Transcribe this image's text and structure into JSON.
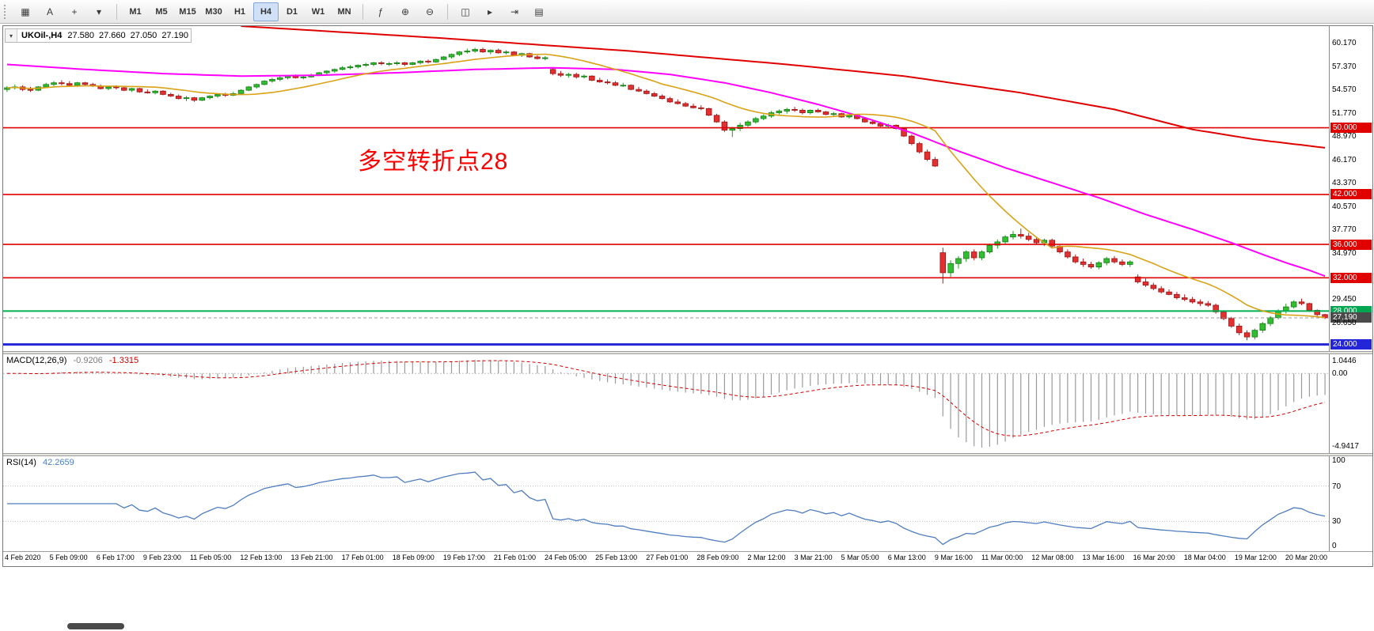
{
  "toolbar": {
    "left_tools": [
      {
        "name": "market-watch",
        "glyph": "▦"
      },
      {
        "name": "text-label",
        "glyph": "A"
      },
      {
        "name": "crosshair",
        "glyph": "+"
      },
      {
        "name": "line-studies",
        "glyph": "▾"
      }
    ],
    "timeframes": [
      "M1",
      "M5",
      "M15",
      "M30",
      "H1",
      "H4",
      "D1",
      "W1",
      "MN"
    ],
    "active_timeframe": "H4",
    "right_tools": [
      {
        "name": "indicators",
        "glyph": "ƒ"
      },
      {
        "name": "zoom-in",
        "glyph": "⊕"
      },
      {
        "name": "zoom-out",
        "glyph": "⊖"
      },
      {
        "name": "tile-windows",
        "glyph": "◫"
      },
      {
        "name": "auto-scroll",
        "glyph": "▸"
      },
      {
        "name": "chart-shift",
        "glyph": "⇥"
      },
      {
        "name": "templates",
        "glyph": "▤"
      }
    ]
  },
  "symbol_info": {
    "symbol": "UKOil-,H4",
    "open": "27.580",
    "high": "27.660",
    "low": "27.050",
    "close": "27.190"
  },
  "annotation": {
    "text": "多空转折点28",
    "color": "#ff0000"
  },
  "price_axis": {
    "ticks": [
      {
        "label": "60.170",
        "value": 60.17
      },
      {
        "label": "57.370",
        "value": 57.37
      },
      {
        "label": "54.570",
        "value": 54.57
      },
      {
        "label": "51.770",
        "value": 51.77
      },
      {
        "label": "48.970",
        "value": 48.97
      },
      {
        "label": "46.170",
        "value": 46.17
      },
      {
        "label": "43.370",
        "value": 43.37
      },
      {
        "label": "40.570",
        "value": 40.57
      },
      {
        "label": "37.770",
        "value": 37.77
      },
      {
        "label": "34.970",
        "value": 34.97
      },
      {
        "label": "29.450",
        "value": 29.45
      },
      {
        "label": "26.650",
        "value": 26.65
      }
    ]
  },
  "indicators": {
    "macd": {
      "label": "MACD(12,26,9)",
      "main_value": "-0.9206",
      "signal_value": "-1.3315",
      "axis_labels": [
        "1.0446",
        "0.00",
        "-4.9417"
      ]
    },
    "rsi": {
      "label": "RSI(14)",
      "value": "42.2659",
      "axis_labels": [
        "100",
        "70",
        "30",
        "0"
      ],
      "levels": [
        30,
        70
      ]
    }
  },
  "time_axis": [
    "4 Feb 2020",
    "5 Feb 09:00",
    "6 Feb 17:00",
    "9 Feb 23:00",
    "11 Feb 05:00",
    "12 Feb 13:00",
    "13 Feb 21:00",
    "17 Feb 01:00",
    "18 Feb 09:00",
    "19 Feb 17:00",
    "21 Feb 01:00",
    "24 Feb 05:00",
    "25 Feb 13:00",
    "27 Feb 01:00",
    "28 Feb 09:00",
    "2 Mar 12:00",
    "3 Mar 21:00",
    "5 Mar 05:00",
    "6 Mar 13:00",
    "9 Mar 16:00",
    "11 Mar 00:00",
    "12 Mar 08:00",
    "13 Mar 16:00",
    "16 Mar 20:00",
    "18 Mar 04:00",
    "19 Mar 12:00",
    "20 Mar 20:00"
  ],
  "chart_data": {
    "type": "candlestick",
    "symbol": "UKOil-",
    "timeframe": "H4",
    "price_range": [
      23.2,
      62.2
    ],
    "candles": [
      [
        54.6,
        55.0,
        54.3,
        54.8
      ],
      [
        54.8,
        55.2,
        54.6,
        54.9
      ],
      [
        54.9,
        55.1,
        54.4,
        54.6
      ],
      [
        54.6,
        54.9,
        54.3,
        54.5
      ],
      [
        54.5,
        55.0,
        54.4,
        54.9
      ],
      [
        54.9,
        55.4,
        54.8,
        55.2
      ],
      [
        55.2,
        55.6,
        55.0,
        55.4
      ],
      [
        55.4,
        55.7,
        55.1,
        55.3
      ],
      [
        55.3,
        55.6,
        55.0,
        55.1
      ],
      [
        55.1,
        55.5,
        54.9,
        55.4
      ],
      [
        55.4,
        55.5,
        55.0,
        55.2
      ],
      [
        55.2,
        55.4,
        54.9,
        55.0
      ],
      [
        55.0,
        55.2,
        54.6,
        54.7
      ],
      [
        54.7,
        55.0,
        54.5,
        54.9
      ],
      [
        54.9,
        55.1,
        54.6,
        54.8
      ],
      [
        54.8,
        54.9,
        54.4,
        54.5
      ],
      [
        54.5,
        54.8,
        54.3,
        54.7
      ],
      [
        54.7,
        54.8,
        54.2,
        54.3
      ],
      [
        54.3,
        54.6,
        54.1,
        54.2
      ],
      [
        54.2,
        54.5,
        54.0,
        54.4
      ],
      [
        54.4,
        54.5,
        53.9,
        54.0
      ],
      [
        54.0,
        54.2,
        53.7,
        53.8
      ],
      [
        53.8,
        54.0,
        53.4,
        53.5
      ],
      [
        53.5,
        53.8,
        53.2,
        53.6
      ],
      [
        53.6,
        53.7,
        53.1,
        53.3
      ],
      [
        53.3,
        53.7,
        53.2,
        53.6
      ],
      [
        53.6,
        53.9,
        53.4,
        53.8
      ],
      [
        53.8,
        54.1,
        53.6,
        54.0
      ],
      [
        54.0,
        54.2,
        53.7,
        53.9
      ],
      [
        53.9,
        54.3,
        53.8,
        54.1
      ],
      [
        54.1,
        54.6,
        54.0,
        54.5
      ],
      [
        54.5,
        55.0,
        54.4,
        54.9
      ],
      [
        54.9,
        55.3,
        54.7,
        55.2
      ],
      [
        55.2,
        55.7,
        55.1,
        55.6
      ],
      [
        55.6,
        56.0,
        55.4,
        55.8
      ],
      [
        55.8,
        56.2,
        55.6,
        56.0
      ],
      [
        56.0,
        56.3,
        55.8,
        56.2
      ],
      [
        56.2,
        56.4,
        55.9,
        56.0
      ],
      [
        56.0,
        56.3,
        55.8,
        56.1
      ],
      [
        56.1,
        56.5,
        56.0,
        56.3
      ],
      [
        56.3,
        56.7,
        56.2,
        56.6
      ],
      [
        56.6,
        56.9,
        56.4,
        56.8
      ],
      [
        56.8,
        57.1,
        56.6,
        57.0
      ],
      [
        57.0,
        57.4,
        56.9,
        57.2
      ],
      [
        57.2,
        57.5,
        57.0,
        57.3
      ],
      [
        57.3,
        57.6,
        57.1,
        57.5
      ],
      [
        57.5,
        57.8,
        57.3,
        57.6
      ],
      [
        57.6,
        57.9,
        57.4,
        57.8
      ],
      [
        57.8,
        58.0,
        57.5,
        57.7
      ],
      [
        57.7,
        57.9,
        57.4,
        57.7
      ],
      [
        57.7,
        58.0,
        57.5,
        57.8
      ],
      [
        57.8,
        57.9,
        57.4,
        57.6
      ],
      [
        57.6,
        57.9,
        57.5,
        57.8
      ],
      [
        57.8,
        58.1,
        57.6,
        58.0
      ],
      [
        58.0,
        58.2,
        57.7,
        57.9
      ],
      [
        57.9,
        58.3,
        57.8,
        58.2
      ],
      [
        58.2,
        58.6,
        58.1,
        58.5
      ],
      [
        58.5,
        58.9,
        58.3,
        58.8
      ],
      [
        58.8,
        59.2,
        58.6,
        59.1
      ],
      [
        59.1,
        59.5,
        58.9,
        59.2
      ],
      [
        59.2,
        59.6,
        59.0,
        59.4
      ],
      [
        59.4,
        59.6,
        59.0,
        59.1
      ],
      [
        59.1,
        59.4,
        58.8,
        59.3
      ],
      [
        59.3,
        59.5,
        58.9,
        59.0
      ],
      [
        59.0,
        59.3,
        58.8,
        59.1
      ],
      [
        59.1,
        59.2,
        58.6,
        58.7
      ],
      [
        58.7,
        59.0,
        58.5,
        58.9
      ],
      [
        58.9,
        59.0,
        58.4,
        58.5
      ],
      [
        58.5,
        58.7,
        58.2,
        58.3
      ],
      [
        58.3,
        58.6,
        58.1,
        58.4
      ],
      [
        57.0,
        57.1,
        56.3,
        56.5
      ],
      [
        56.5,
        56.8,
        56.1,
        56.3
      ],
      [
        56.3,
        56.6,
        56.0,
        56.4
      ],
      [
        56.4,
        56.6,
        55.9,
        56.1
      ],
      [
        56.1,
        56.4,
        55.9,
        56.2
      ],
      [
        56.2,
        56.3,
        55.6,
        55.7
      ],
      [
        55.7,
        56.0,
        55.4,
        55.5
      ],
      [
        55.5,
        55.8,
        55.2,
        55.4
      ],
      [
        55.4,
        55.6,
        55.0,
        55.1
      ],
      [
        55.1,
        55.4,
        54.9,
        55.1
      ],
      [
        55.1,
        55.2,
        54.5,
        54.6
      ],
      [
        54.6,
        54.9,
        54.3,
        54.4
      ],
      [
        54.4,
        54.6,
        54.0,
        54.1
      ],
      [
        54.1,
        54.3,
        53.7,
        53.8
      ],
      [
        53.8,
        54.0,
        53.4,
        53.5
      ],
      [
        53.5,
        53.7,
        53.0,
        53.1
      ],
      [
        53.1,
        53.4,
        52.8,
        52.9
      ],
      [
        52.9,
        53.1,
        52.5,
        52.6
      ],
      [
        52.6,
        52.9,
        52.3,
        52.4
      ],
      [
        52.4,
        52.7,
        52.1,
        52.3
      ],
      [
        52.3,
        52.4,
        51.4,
        51.5
      ],
      [
        51.5,
        51.7,
        50.6,
        50.7
      ],
      [
        50.7,
        50.9,
        49.5,
        49.7
      ],
      [
        49.7,
        50.1,
        48.9,
        49.9
      ],
      [
        49.9,
        50.6,
        49.6,
        50.3
      ],
      [
        50.3,
        50.9,
        50.1,
        50.7
      ],
      [
        50.7,
        51.3,
        50.5,
        51.1
      ],
      [
        51.1,
        51.6,
        50.9,
        51.4
      ],
      [
        51.4,
        52.0,
        51.2,
        51.8
      ],
      [
        51.8,
        52.2,
        51.6,
        52.0
      ],
      [
        52.0,
        52.4,
        51.7,
        52.2
      ],
      [
        52.2,
        52.5,
        51.9,
        52.1
      ],
      [
        52.1,
        52.3,
        51.6,
        51.8
      ],
      [
        51.8,
        52.2,
        51.6,
        52.1
      ],
      [
        52.1,
        52.3,
        51.8,
        51.9
      ],
      [
        51.9,
        52.0,
        51.5,
        51.6
      ],
      [
        51.6,
        51.9,
        51.4,
        51.7
      ],
      [
        51.7,
        51.8,
        51.2,
        51.3
      ],
      [
        51.3,
        51.6,
        51.1,
        51.5
      ],
      [
        51.5,
        51.6,
        51.0,
        51.1
      ],
      [
        51.1,
        51.2,
        50.6,
        50.7
      ],
      [
        50.7,
        51.0,
        50.4,
        50.5
      ],
      [
        50.5,
        50.7,
        50.1,
        50.2
      ],
      [
        50.2,
        50.5,
        49.9,
        50.3
      ],
      [
        50.3,
        50.4,
        49.8,
        49.9
      ],
      [
        49.9,
        50.0,
        48.9,
        49.0
      ],
      [
        49.0,
        49.2,
        47.9,
        48.1
      ],
      [
        48.1,
        48.3,
        46.9,
        47.1
      ],
      [
        47.1,
        47.4,
        46.0,
        46.2
      ],
      [
        46.2,
        46.5,
        45.3,
        45.4
      ],
      [
        35.0,
        35.6,
        31.3,
        32.6
      ],
      [
        32.6,
        34.1,
        32.1,
        33.7
      ],
      [
        33.7,
        34.6,
        33.1,
        34.3
      ],
      [
        34.3,
        35.3,
        33.9,
        35.1
      ],
      [
        35.1,
        35.4,
        34.1,
        34.4
      ],
      [
        34.4,
        35.3,
        34.1,
        35.1
      ],
      [
        35.1,
        36.1,
        34.9,
        35.9
      ],
      [
        35.9,
        36.6,
        35.5,
        36.3
      ],
      [
        36.3,
        37.1,
        36.0,
        36.9
      ],
      [
        36.9,
        37.6,
        36.6,
        37.2
      ],
      [
        37.2,
        37.9,
        36.7,
        37.0
      ],
      [
        37.0,
        37.4,
        36.4,
        36.6
      ],
      [
        36.6,
        36.9,
        36.0,
        36.2
      ],
      [
        36.2,
        36.7,
        35.8,
        36.5
      ],
      [
        36.5,
        36.7,
        35.6,
        35.8
      ],
      [
        35.8,
        35.9,
        34.9,
        35.1
      ],
      [
        35.1,
        35.4,
        34.3,
        34.5
      ],
      [
        34.5,
        34.8,
        33.7,
        33.9
      ],
      [
        33.9,
        34.3,
        33.3,
        33.6
      ],
      [
        33.6,
        33.9,
        33.1,
        33.3
      ],
      [
        33.3,
        34.0,
        33.0,
        33.8
      ],
      [
        33.8,
        34.5,
        33.5,
        34.3
      ],
      [
        34.3,
        34.6,
        33.7,
        33.9
      ],
      [
        33.9,
        34.2,
        33.4,
        33.6
      ],
      [
        33.6,
        34.1,
        33.3,
        33.9
      ],
      [
        32.1,
        32.4,
        31.3,
        31.5
      ],
      [
        31.5,
        31.9,
        30.9,
        31.1
      ],
      [
        31.1,
        31.4,
        30.5,
        30.7
      ],
      [
        30.7,
        31.0,
        30.1,
        30.3
      ],
      [
        30.3,
        30.6,
        29.9,
        30.0
      ],
      [
        30.0,
        30.3,
        29.4,
        29.6
      ],
      [
        29.6,
        30.0,
        29.2,
        29.4
      ],
      [
        29.4,
        29.7,
        28.9,
        29.1
      ],
      [
        29.1,
        29.4,
        28.6,
        28.9
      ],
      [
        28.9,
        29.2,
        28.5,
        28.7
      ],
      [
        28.7,
        28.9,
        27.7,
        27.9
      ],
      [
        27.9,
        28.1,
        26.9,
        27.1
      ],
      [
        27.1,
        27.3,
        26.0,
        26.2
      ],
      [
        26.2,
        26.5,
        25.1,
        25.4
      ],
      [
        25.4,
        25.7,
        24.5,
        24.9
      ],
      [
        24.9,
        25.9,
        24.6,
        25.7
      ],
      [
        25.7,
        26.7,
        25.4,
        26.5
      ],
      [
        26.5,
        27.4,
        26.2,
        27.2
      ],
      [
        27.2,
        28.2,
        27.0,
        28.0
      ],
      [
        28.0,
        28.9,
        27.7,
        28.5
      ],
      [
        28.5,
        29.3,
        28.3,
        29.1
      ],
      [
        29.1,
        29.5,
        28.7,
        28.9
      ],
      [
        28.9,
        29.0,
        27.9,
        28.1
      ],
      [
        28.1,
        28.2,
        27.4,
        27.58
      ],
      [
        27.58,
        27.66,
        27.05,
        27.19
      ]
    ],
    "overlays": {
      "ma_fast": {
        "type": "sma",
        "period": 15,
        "color": "#d9a217"
      },
      "ma_mid": {
        "color": "#ff00ff",
        "points": [
          [
            0,
            57.6
          ],
          [
            10,
            57.0
          ],
          [
            20,
            56.5
          ],
          [
            30,
            56.2
          ],
          [
            40,
            56.3
          ],
          [
            50,
            56.6
          ],
          [
            60,
            57.0
          ],
          [
            70,
            57.2
          ],
          [
            78,
            57.0
          ],
          [
            85,
            56.4
          ],
          [
            92,
            55.4
          ],
          [
            98,
            54.2
          ],
          [
            104,
            52.8
          ],
          [
            110,
            51.2
          ],
          [
            116,
            49.4
          ],
          [
            122,
            47.2
          ],
          [
            128,
            45.2
          ],
          [
            134,
            43.4
          ],
          [
            140,
            41.6
          ],
          [
            146,
            39.6
          ],
          [
            152,
            37.8
          ],
          [
            157,
            36.2
          ],
          [
            161,
            34.8
          ],
          [
            164,
            33.8
          ],
          [
            167,
            32.9
          ],
          [
            169,
            32.2
          ]
        ]
      },
      "ma_slow": {
        "color": "#e00000",
        "points": [
          [
            30,
            62.2
          ],
          [
            55,
            60.8
          ],
          [
            80,
            59.2
          ],
          [
            100,
            57.6
          ],
          [
            115,
            56.2
          ],
          [
            130,
            54.2
          ],
          [
            142,
            52.2
          ],
          [
            152,
            49.8
          ],
          [
            160,
            48.6
          ],
          [
            169,
            47.6
          ]
        ]
      }
    },
    "hlines": [
      {
        "price": 50.0,
        "label": "50.000",
        "color": "#e00000",
        "width": 1.6,
        "box": "#e00000"
      },
      {
        "price": 42.0,
        "label": "42.000",
        "color": "#e00000",
        "width": 1.6,
        "box": "#e00000"
      },
      {
        "price": 36.0,
        "label": "36.000",
        "color": "#e00000",
        "width": 1.6,
        "box": "#e00000"
      },
      {
        "price": 32.0,
        "label": "32.000",
        "color": "#e00000",
        "width": 1.6,
        "box": "#e00000"
      },
      {
        "price": 28.0,
        "label": "28.000",
        "color": "#00b050",
        "width": 2,
        "box": "#00a650"
      },
      {
        "price": 24.0,
        "label": "24.000",
        "color": "#2424d8",
        "width": 3,
        "box": "#2424d8"
      },
      {
        "price": 27.19,
        "label": "27.190",
        "color": "#9a9a9a",
        "width": 1,
        "dash": "4 3",
        "box": "#4a4a4a"
      }
    ]
  }
}
